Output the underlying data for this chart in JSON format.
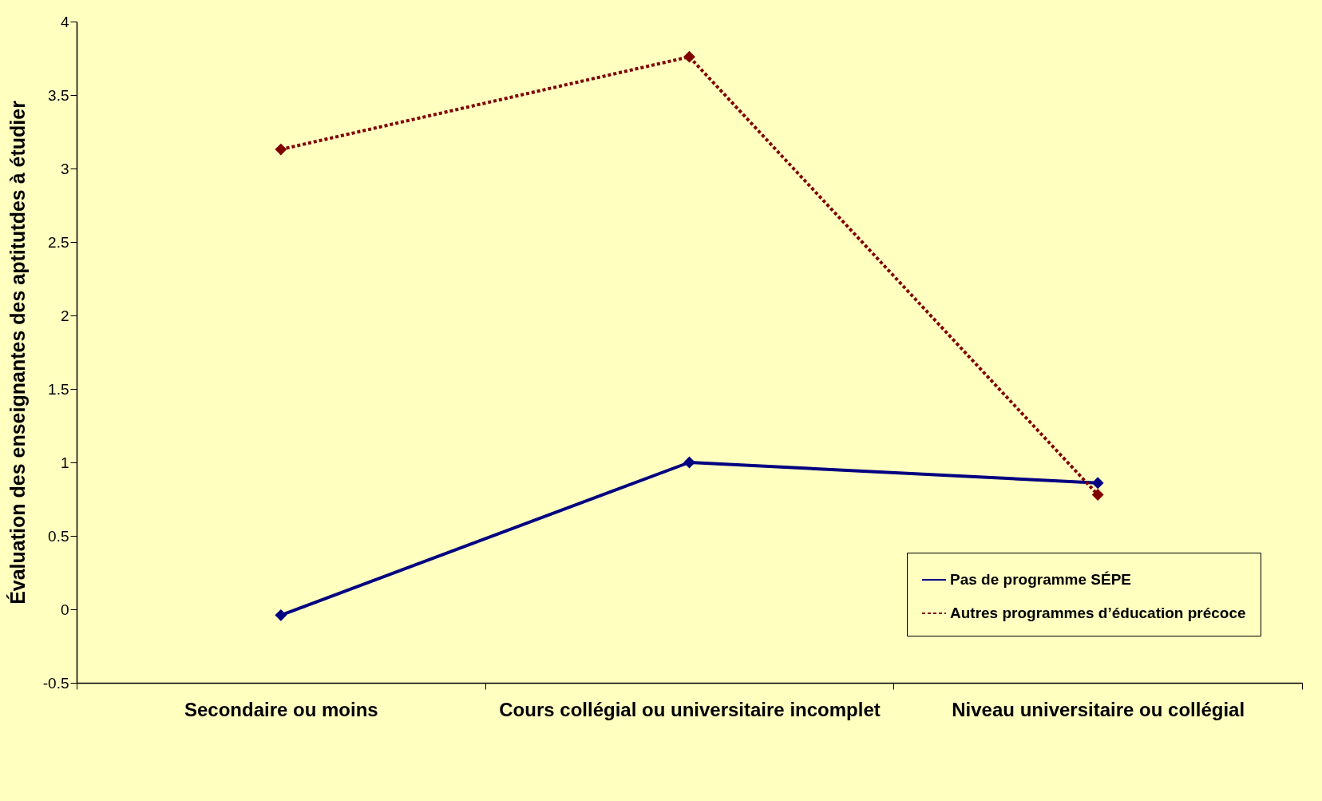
{
  "chart_data": {
    "type": "line",
    "ylabel": "Évaluation des enseignantes des aptitutdes à étudier",
    "categories": [
      "Secondaire ou moins",
      "Cours collégial ou universitaire incomplet",
      "Niveau universitaire ou collégial"
    ],
    "series": [
      {
        "name": "Pas de programme SÉPE",
        "color": "#000080",
        "line_style": "solid",
        "values": [
          -0.04,
          1.0,
          0.86
        ]
      },
      {
        "name": "Autres programmes d’éducation précoce",
        "color": "#800000",
        "line_style": "dotted",
        "values": [
          3.13,
          3.76,
          0.78
        ]
      }
    ],
    "ylim": [
      -0.5,
      4
    ],
    "yticks": [
      -0.5,
      0,
      0.5,
      1,
      1.5,
      2,
      2.5,
      3,
      3.5,
      4
    ],
    "grid": false,
    "legend": "bottom right",
    "marker": "diamond"
  }
}
